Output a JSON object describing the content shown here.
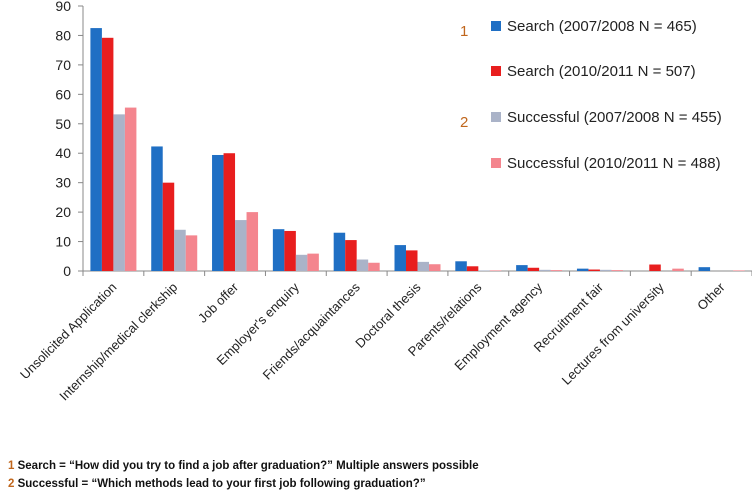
{
  "chart_data": {
    "type": "bar",
    "categories": [
      "Unsolicited Application",
      "Internship/medical clerkship",
      "Job offer",
      "Employer's enquiry",
      "Friends/acquaintances",
      "Doctoral thesis",
      "Parents/relations",
      "Employment agency",
      "Recruitment fair",
      "Lectures from university",
      "Other"
    ],
    "series": [
      {
        "name": "Search (2007/2008 N = 465)",
        "color": "#1f6fc4",
        "values": [
          82.5,
          42.3,
          39.4,
          14.2,
          13.0,
          8.8,
          3.3,
          2.0,
          0.8,
          0.0,
          1.3
        ]
      },
      {
        "name": "Search (2010/2011 N = 507)",
        "color": "#e81e1e",
        "values": [
          79.2,
          30.0,
          40.0,
          13.6,
          10.5,
          7.0,
          1.6,
          1.1,
          0.5,
          2.2,
          0.0
        ]
      },
      {
        "name": "Successful (2007/2008 N = 455)",
        "color": "#aab3c8",
        "values": [
          53.2,
          14.0,
          17.3,
          5.5,
          3.9,
          3.1,
          0.2,
          0.4,
          0.4,
          0.0,
          0.0
        ]
      },
      {
        "name": "Successful (2010/2011 N = 488)",
        "color": "#f4858e",
        "values": [
          55.5,
          12.1,
          20.0,
          5.9,
          2.8,
          2.3,
          0.2,
          0.3,
          0.3,
          0.8,
          0.2
        ]
      }
    ],
    "yticks": [
      0,
      10,
      20,
      30,
      40,
      50,
      60,
      70,
      80,
      90
    ],
    "ylim": [
      0,
      90
    ],
    "grid": false,
    "legend_position": "top-right",
    "legend_markers": [
      {
        "label": "1",
        "series_index": 0
      },
      {
        "label": "2",
        "series_index": 2
      }
    ]
  },
  "footnotes": [
    {
      "num": "1",
      "text": "Search = “How did you try to find a job after graduation?” Multiple answers possible"
    },
    {
      "num": "2",
      "text": "Successful = “Which methods lead to your first job following graduation?”"
    }
  ]
}
